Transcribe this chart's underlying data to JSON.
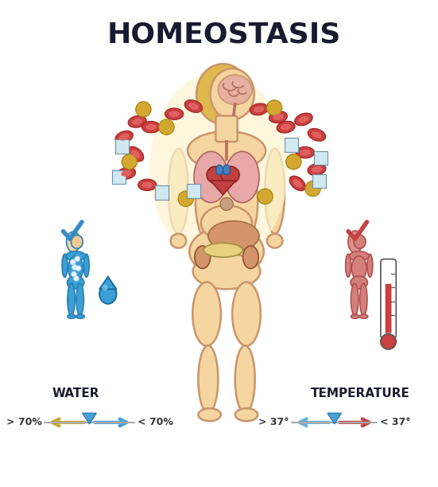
{
  "title": "HOMEOSTASIS",
  "title_fontsize": 26,
  "title_fontweight": "bold",
  "title_color": "#1a1a2e",
  "background_color": "#ffffff",
  "water_label": "WATER",
  "temperature_label": "TEMPERATURE",
  "water_left_label": "> 70%",
  "water_right_label": "< 70%",
  "temp_left_label": "> 37°",
  "temp_right_label": "< 37°",
  "body_skin_color": "#f5d5a0",
  "body_skin_light": "#faecd0",
  "body_outline_color": "#c8956c",
  "blue_figure_color": "#3a9fd4",
  "blue_figure_dark": "#2a7fb4",
  "red_figure_color": "#d4807a",
  "red_figure_dark": "#b05050",
  "check_blue": "#3a8bc4",
  "check_red": "#c44444",
  "arrow_gold": "#c8a83c",
  "arrow_blue": "#4a9fd4",
  "arrow_red_temp": "#c44444",
  "arrow_blue_temp": "#6ab0d4",
  "label_fontsize": 11,
  "axis_label_fontsize": 9,
  "blood_cell_color": "#c84040",
  "blood_cell_inner": "#e06060",
  "gold_circle_color": "#d4a830",
  "crystal_color": "#d0e8f0",
  "lung_color": "#e8a8a8",
  "heart_color": "#c04040",
  "liver_color": "#d4956a",
  "pancreas_color": "#e8d080",
  "kidney_color": "#d4956a",
  "brain_color": "#e8b0a0",
  "hair_center_color": "#e8c870",
  "hair_side_color": "#e0b850"
}
